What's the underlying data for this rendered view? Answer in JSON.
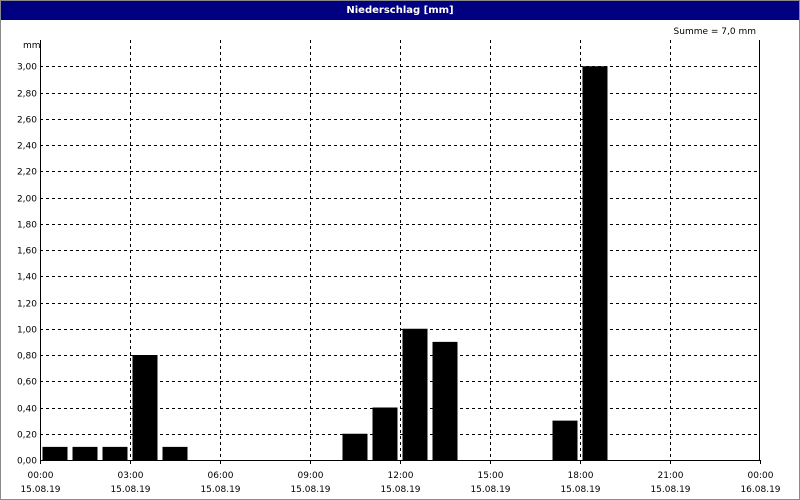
{
  "chart_data": {
    "type": "bar",
    "title": "Niederschlag [mm]",
    "ylabel": "mm",
    "annotation": "Summe = 7,0 mm",
    "ylim": [
      0,
      3.2
    ],
    "xlim_hours": [
      0,
      24
    ],
    "yticks": [
      "0,00",
      "0,20",
      "0,40",
      "0,60",
      "0,80",
      "1,00",
      "1,20",
      "1,40",
      "1,60",
      "1,80",
      "2,00",
      "2,20",
      "2,40",
      "2,60",
      "2,80",
      "3,00"
    ],
    "xticks": [
      {
        "time": "00:00",
        "date": "15.08.19"
      },
      {
        "time": "03:00",
        "date": "15.08.19"
      },
      {
        "time": "06:00",
        "date": "15.08.19"
      },
      {
        "time": "09:00",
        "date": "15.08.19"
      },
      {
        "time": "12:00",
        "date": "15.08.19"
      },
      {
        "time": "15:00",
        "date": "15.08.19"
      },
      {
        "time": "18:00",
        "date": "15.08.19"
      },
      {
        "time": "21:00",
        "date": "15.08.19"
      },
      {
        "time": "00:00",
        "date": "16.08.19"
      }
    ],
    "grid": true,
    "bar_color": "#000000",
    "bars": [
      {
        "hour": 0,
        "value": 0.1
      },
      {
        "hour": 1,
        "value": 0.1
      },
      {
        "hour": 2,
        "value": 0.1
      },
      {
        "hour": 3,
        "value": 0.8
      },
      {
        "hour": 4,
        "value": 0.1
      },
      {
        "hour": 10,
        "value": 0.2
      },
      {
        "hour": 11,
        "value": 0.4
      },
      {
        "hour": 12,
        "value": 1.0
      },
      {
        "hour": 13,
        "value": 0.9
      },
      {
        "hour": 17,
        "value": 0.3
      },
      {
        "hour": 18,
        "value": 3.0
      }
    ]
  }
}
